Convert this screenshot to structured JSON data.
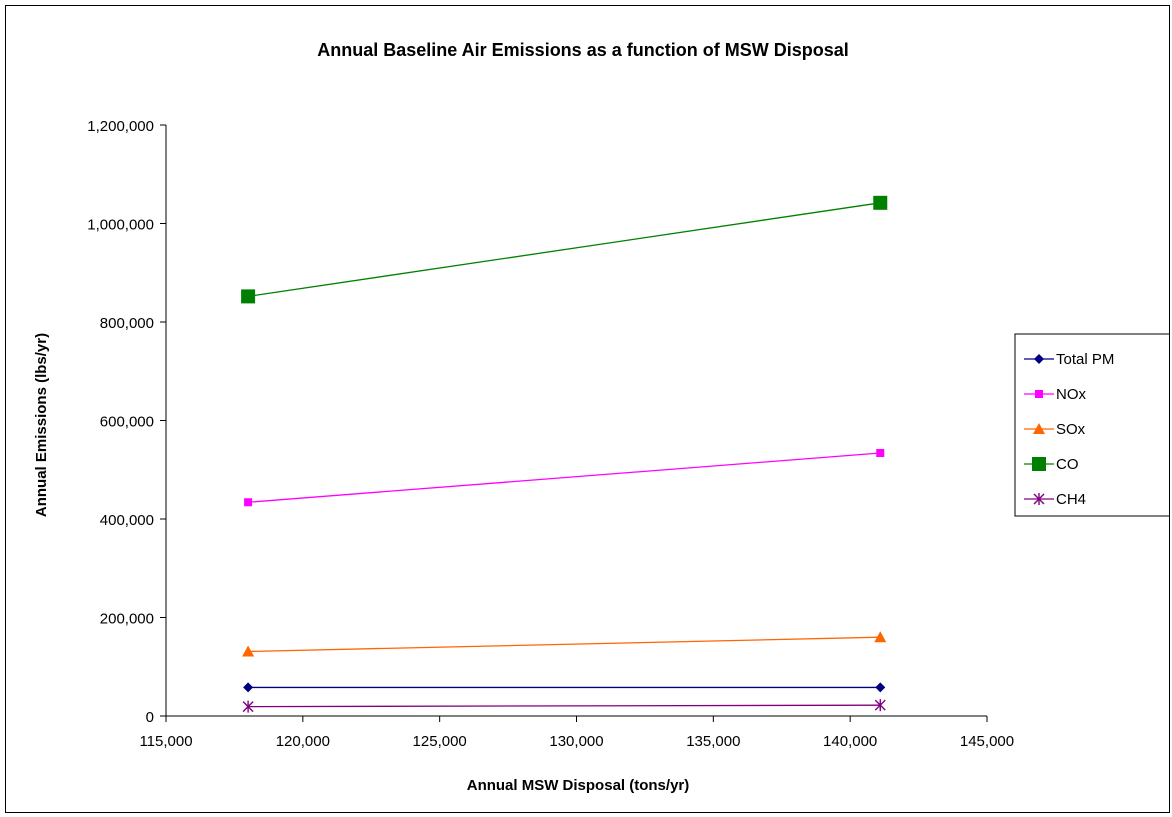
{
  "chart_data": {
    "type": "line",
    "title": "Annual Baseline Air Emissions as a function of MSW Disposal",
    "xlabel": "Annual MSW Disposal (tons/yr)",
    "ylabel": "Annual Emissions (lbs/yr)",
    "xlim": [
      115000,
      145000
    ],
    "ylim": [
      0,
      1200000
    ],
    "x_ticks": [
      115000,
      120000,
      125000,
      130000,
      135000,
      140000,
      145000
    ],
    "x_tick_labels": [
      "115,000",
      "120,000",
      "125,000",
      "130,000",
      "135,000",
      "140,000",
      "145,000"
    ],
    "y_ticks": [
      0,
      200000,
      400000,
      600000,
      800000,
      1000000,
      1200000
    ],
    "y_tick_labels": [
      "0",
      "200,000",
      "400,000",
      "600,000",
      "800,000",
      "1,000,000",
      "1,200,000"
    ],
    "grid": false,
    "legend_position": "right",
    "x": [
      118000,
      141100
    ],
    "series": [
      {
        "name": "Total PM",
        "values": [
          58000,
          58000
        ],
        "color": "#000080",
        "marker": "diamond"
      },
      {
        "name": "NOx",
        "values": [
          434000,
          534000
        ],
        "color": "#FF00FF",
        "marker": "square"
      },
      {
        "name": "SOx",
        "values": [
          131000,
          160000
        ],
        "color": "#FF6600",
        "marker": "triangle"
      },
      {
        "name": "CO",
        "values": [
          852000,
          1042000
        ],
        "color": "#008000",
        "marker": "square-large"
      },
      {
        "name": "CH4",
        "values": [
          19000,
          22000
        ],
        "color": "#800080",
        "marker": "star"
      }
    ]
  }
}
